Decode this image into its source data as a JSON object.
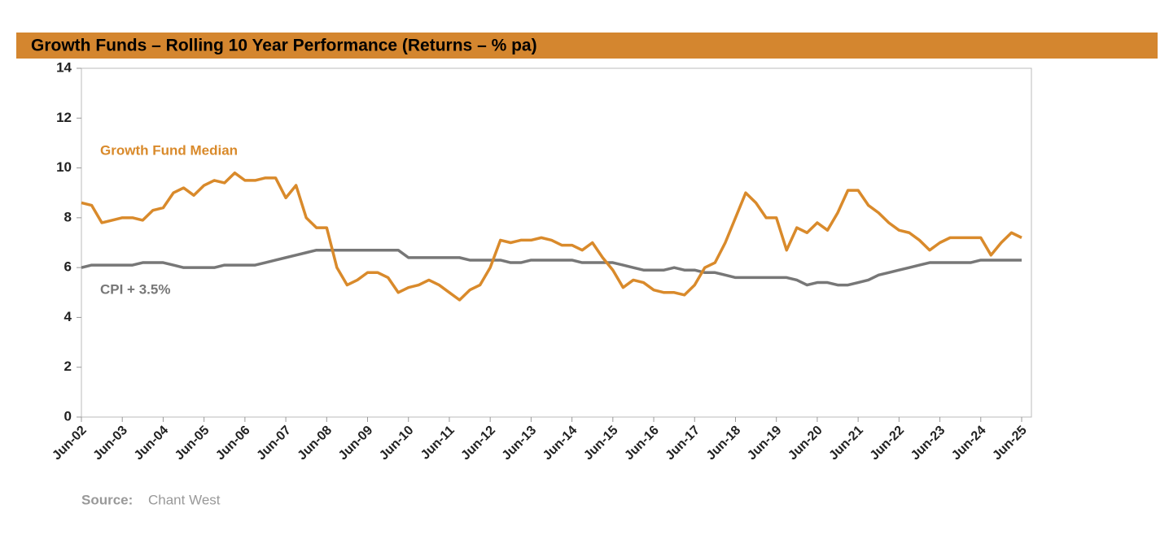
{
  "chart_data": {
    "type": "line",
    "title": "Growth Funds – Rolling 10 Year Performance (Returns – % pa)",
    "source_label": "Source:",
    "source": "Chant West",
    "categories": [
      "Jun-02",
      null,
      null,
      null,
      "Jun-03",
      null,
      null,
      null,
      "Jun-04",
      null,
      null,
      null,
      "Jun-05",
      null,
      null,
      null,
      "Jun-06",
      null,
      null,
      null,
      "Jun-07",
      null,
      null,
      null,
      "Jun-08",
      null,
      null,
      null,
      "Jun-09",
      null,
      null,
      null,
      "Jun-10",
      null,
      null,
      null,
      "Jun-11",
      null,
      null,
      null,
      "Jun-12",
      null,
      null,
      null,
      "Jun-13",
      null,
      null,
      null,
      "Jun-14",
      null,
      null,
      null,
      "Jun-15",
      null,
      null,
      null,
      "Jun-16",
      null,
      null,
      null,
      "Jun-17",
      null,
      null,
      null,
      "Jun-18",
      null,
      null,
      null,
      "Jun-19",
      null,
      null,
      null,
      "Jun-20",
      null,
      null,
      null,
      "Jun-21",
      null,
      null,
      null,
      "Jun-22",
      null,
      null,
      null,
      "Jun-23",
      null,
      null,
      null,
      "Jun-24",
      null,
      null,
      null,
      "Jun-25"
    ],
    "series": [
      {
        "name": "Growth Fund Median",
        "color": "#D98A2B",
        "values": [
          8.6,
          8.5,
          7.8,
          7.9,
          8.0,
          8.0,
          7.9,
          8.3,
          8.4,
          9.0,
          9.2,
          8.9,
          9.3,
          9.5,
          9.4,
          9.8,
          9.5,
          9.5,
          9.6,
          9.6,
          8.8,
          9.3,
          8.0,
          7.6,
          7.6,
          6.0,
          5.3,
          5.5,
          5.8,
          5.8,
          5.6,
          5.0,
          5.2,
          5.3,
          5.5,
          5.3,
          5.0,
          4.7,
          5.1,
          5.3,
          6.0,
          7.1,
          7.0,
          7.1,
          7.1,
          7.2,
          7.1,
          6.9,
          6.9,
          6.7,
          7.0,
          6.4,
          5.9,
          5.2,
          5.5,
          5.4,
          5.1,
          5.0,
          5.0,
          4.9,
          5.3,
          6.0,
          6.2,
          7.0,
          8.0,
          9.0,
          8.6,
          8.0,
          8.0,
          6.7,
          7.6,
          7.4,
          7.8,
          7.5,
          8.2,
          9.1,
          9.1,
          8.5,
          8.2,
          7.8,
          7.5,
          7.4,
          7.1,
          6.7,
          7.0,
          7.2,
          7.2,
          7.2,
          7.2,
          6.5,
          7.0,
          7.4,
          7.2
        ]
      },
      {
        "name": "CPI + 3.5%",
        "color": "#777777",
        "values": [
          6.0,
          6.1,
          6.1,
          6.1,
          6.1,
          6.1,
          6.2,
          6.2,
          6.2,
          6.1,
          6.0,
          6.0,
          6.0,
          6.0,
          6.1,
          6.1,
          6.1,
          6.1,
          6.2,
          6.3,
          6.4,
          6.5,
          6.6,
          6.7,
          6.7,
          6.7,
          6.7,
          6.7,
          6.7,
          6.7,
          6.7,
          6.7,
          6.4,
          6.4,
          6.4,
          6.4,
          6.4,
          6.4,
          6.3,
          6.3,
          6.3,
          6.3,
          6.2,
          6.2,
          6.3,
          6.3,
          6.3,
          6.3,
          6.3,
          6.2,
          6.2,
          6.2,
          6.2,
          6.1,
          6.0,
          5.9,
          5.9,
          5.9,
          6.0,
          5.9,
          5.9,
          5.8,
          5.8,
          5.7,
          5.6,
          5.6,
          5.6,
          5.6,
          5.6,
          5.6,
          5.5,
          5.3,
          5.4,
          5.4,
          5.3,
          5.3,
          5.4,
          5.5,
          5.7,
          5.8,
          5.9,
          6.0,
          6.1,
          6.2,
          6.2,
          6.2,
          6.2,
          6.2,
          6.3,
          6.3,
          6.3,
          6.3,
          6.3
        ]
      }
    ],
    "ylim": [
      0,
      14
    ],
    "yticks": [
      0,
      2,
      4,
      6,
      8,
      10,
      12,
      14
    ]
  }
}
